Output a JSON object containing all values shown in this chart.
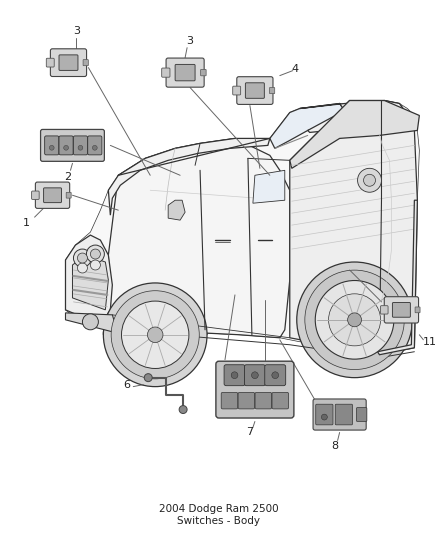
{
  "title": "2004 Dodge Ram 2500",
  "subtitle": "Switches - Body",
  "background_color": "#ffffff",
  "fig_width": 4.38,
  "fig_height": 5.33,
  "dpi": 100,
  "truck": {
    "body_color": "#f8f8f8",
    "line_color": "#333333",
    "line_width": 0.9
  },
  "parts_line_color": "#555555",
  "label_color": "#222222",
  "label_fontsize": 8
}
